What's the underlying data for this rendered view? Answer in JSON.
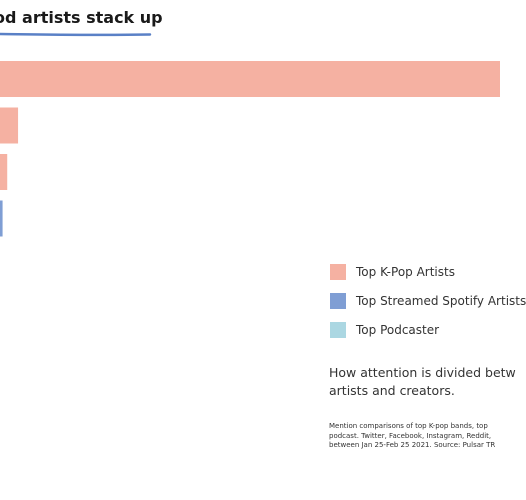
{
  "title": "od artists stack up",
  "colors": {
    "kpop": "#f5b1a2",
    "spotify": "#7f9ed4",
    "podcaster": "#abd7e2",
    "underline": "#5a80c6"
  },
  "chart_data": {
    "type": "bar",
    "orientation": "horizontal",
    "values": [
      100,
      6.6,
      4.5,
      3.6
    ],
    "series_index": [
      0,
      0,
      0,
      1
    ],
    "series": [
      {
        "name": "Top K-Pop Artists",
        "color_key": "kpop"
      },
      {
        "name": "Top Streamed Spotify Artists",
        "color_key": "spotify"
      },
      {
        "name": "Top Podcaster",
        "color_key": "podcaster"
      }
    ],
    "legend_position": "right",
    "grid": false
  },
  "subtitle": {
    "line1": "How attention is divided betw",
    "line2": "artists and creators."
  },
  "footnote": {
    "line1": "Mention comparisons of top K-pop bands, top",
    "line2": "podcast. Twitter, Facebook, Instagram, Reddit,",
    "line3": "between Jan 25-Feb 25 2021. Source: Pulsar TR"
  }
}
